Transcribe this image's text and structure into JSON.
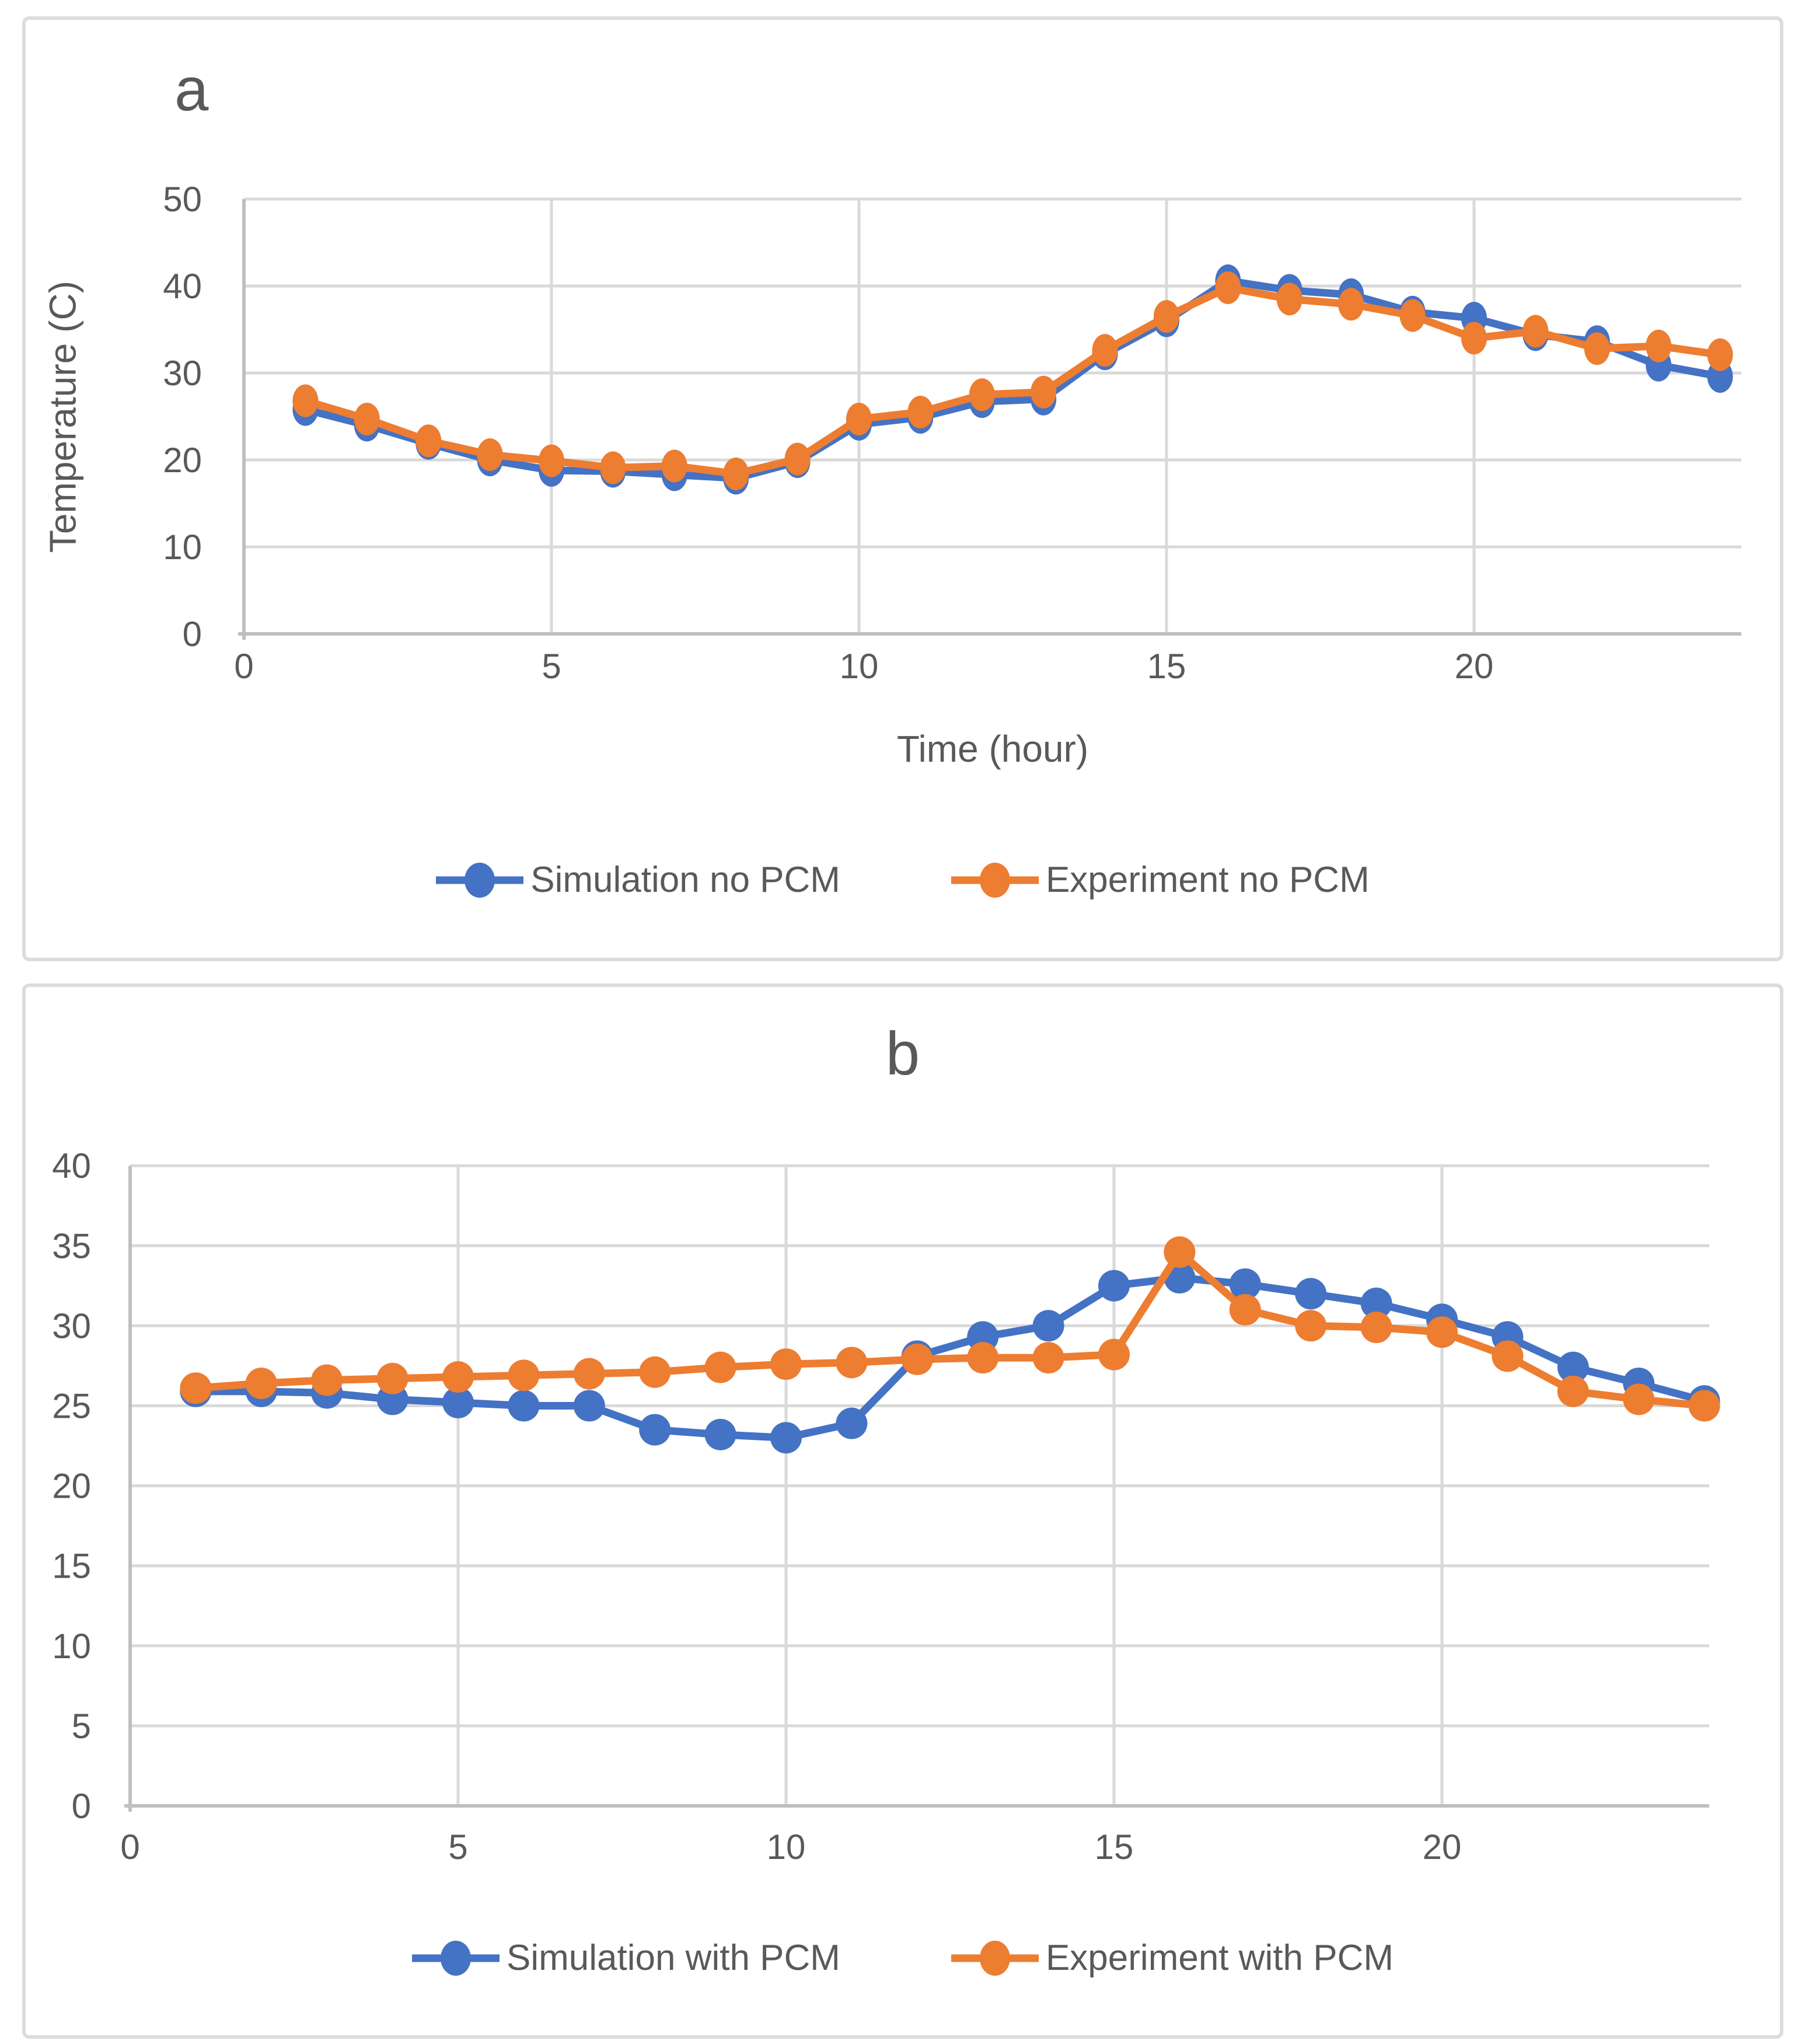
{
  "page": {
    "background": "#ffffff",
    "text_color": "#595959"
  },
  "colors": {
    "simulation_blue": "#4472C4",
    "experiment_orange": "#ED7D31",
    "gridline": "#D9D9D9",
    "axis_line": "#BFBFBF",
    "panel_border": "#DCDCDC"
  },
  "chart_data": [
    {
      "type": "line",
      "panel_label": "a",
      "xlabel": "Time (hour)",
      "ylabel": "Temperature (C)",
      "legend_position": "bottom",
      "grid": true,
      "xlim": [
        0,
        24.35
      ],
      "ylim": [
        0,
        50
      ],
      "xticks": [
        0,
        5,
        10,
        15,
        20
      ],
      "yticks": [
        0,
        10,
        20,
        30,
        40,
        50
      ],
      "x": [
        1,
        2,
        3,
        4,
        5,
        6,
        7,
        8,
        9,
        10,
        11,
        12,
        13,
        14,
        15,
        16,
        17,
        18,
        19,
        20,
        21,
        22,
        23,
        24
      ],
      "series": [
        {
          "name": "Simulation no PCM",
          "color": "#4472C4",
          "values": [
            25.8,
            24.0,
            21.9,
            20.0,
            18.8,
            18.7,
            18.3,
            17.9,
            19.8,
            24.1,
            24.9,
            26.7,
            27.0,
            32.2,
            36.0,
            40.6,
            39.5,
            39.0,
            37.0,
            36.3,
            34.4,
            33.6,
            30.9,
            29.6
          ]
        },
        {
          "name": "Experiment no PCM",
          "color": "#ED7D31",
          "values": [
            26.8,
            24.7,
            22.2,
            20.6,
            19.9,
            19.1,
            19.3,
            18.4,
            20.1,
            24.7,
            25.5,
            27.5,
            27.8,
            32.6,
            36.5,
            39.8,
            38.5,
            37.9,
            36.6,
            34.0,
            34.8,
            32.8,
            33.1,
            32.1
          ]
        }
      ]
    },
    {
      "type": "line",
      "panel_label": "b",
      "xlabel": "",
      "ylabel": "",
      "legend_position": "bottom",
      "grid": true,
      "xlim": [
        0,
        24.1
      ],
      "ylim": [
        0,
        40
      ],
      "xticks": [
        0,
        5,
        10,
        15,
        20
      ],
      "yticks": [
        0,
        5,
        10,
        15,
        20,
        25,
        30,
        35,
        40
      ],
      "x": [
        1,
        2,
        3,
        4,
        5,
        6,
        7,
        8,
        9,
        10,
        11,
        12,
        13,
        14,
        15,
        16,
        17,
        18,
        19,
        20,
        21,
        22,
        23,
        24
      ],
      "series": [
        {
          "name": "Simulation with PCM",
          "color": "#4472C4",
          "values": [
            25.9,
            25.9,
            25.8,
            25.4,
            25.2,
            25.0,
            25.0,
            23.5,
            23.2,
            23.0,
            23.9,
            28.1,
            29.3,
            30.0,
            32.5,
            33.0,
            32.6,
            32.0,
            31.4,
            30.4,
            29.3,
            27.4,
            26.4,
            25.3
          ]
        },
        {
          "name": "Experiment with PCM",
          "color": "#ED7D31",
          "values": [
            26.1,
            26.4,
            26.6,
            26.7,
            26.8,
            26.9,
            27.0,
            27.1,
            27.4,
            27.6,
            27.7,
            27.9,
            28.0,
            28.0,
            28.2,
            34.6,
            31.0,
            30.0,
            29.9,
            29.6,
            28.1,
            25.9,
            25.4,
            25.0
          ]
        }
      ]
    }
  ]
}
